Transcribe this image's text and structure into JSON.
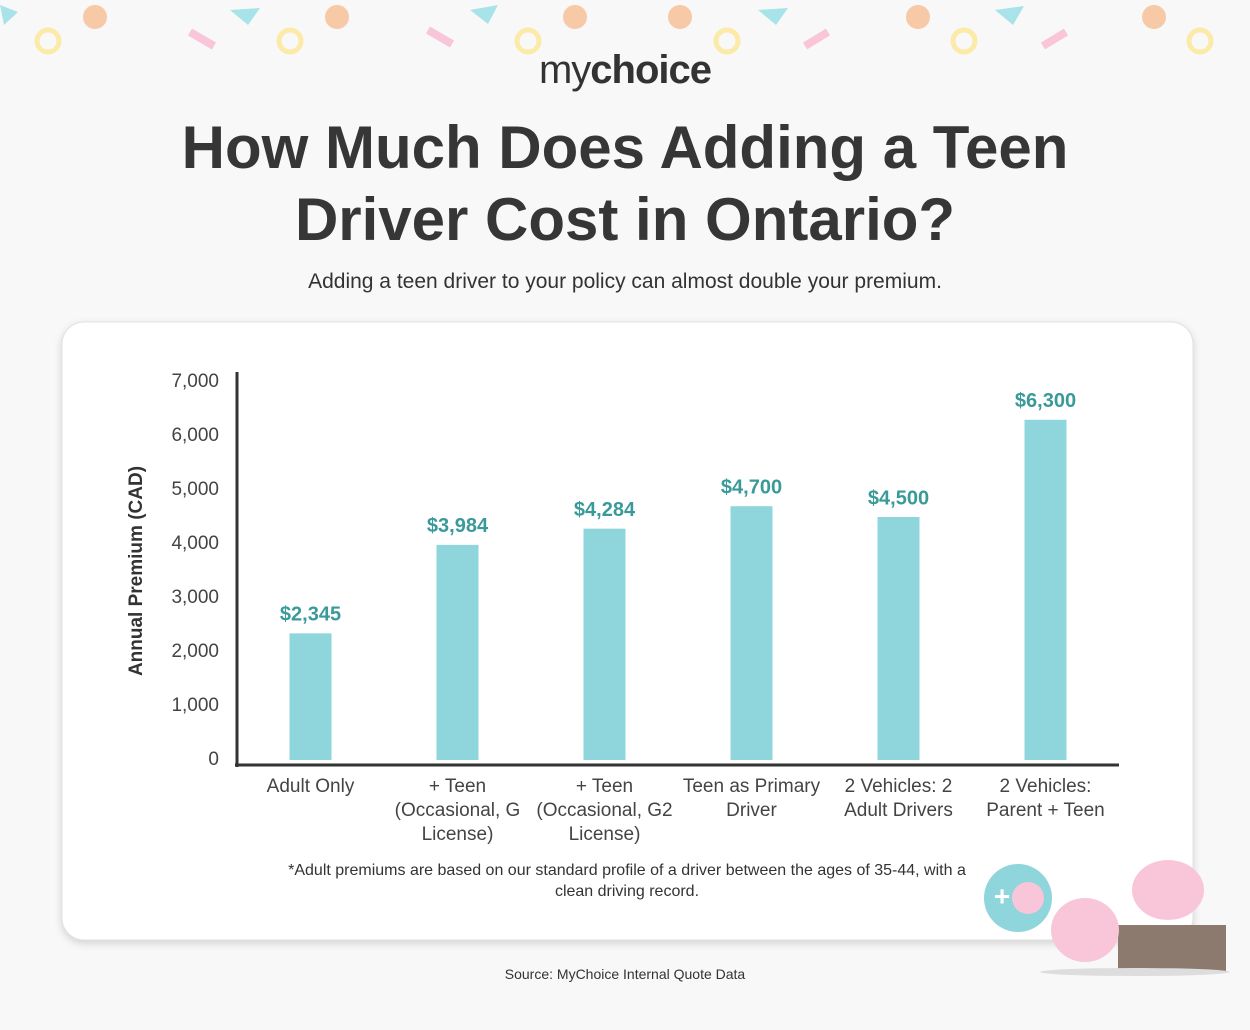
{
  "logo": [
    "my",
    "choice"
  ],
  "chart_data": {
    "type": "bar",
    "title": "How Much Does Adding a Teen Driver Cost in Ontario?",
    "subtitle": "Adding a teen driver to your policy can almost double your premium.",
    "y_label": "Annual Premium (CAD)",
    "categories": [
      "Adult Only",
      "+ Teen (Occasional, G License)",
      "+ Teen (Occasional, G2 License)",
      "Teen as Primary Driver",
      "2 Vehicles: 2 Adult Drivers",
      "2 Vehicles: Parent + Teen"
    ],
    "values": [
      2345,
      3984,
      4284,
      4700,
      4500,
      6300
    ],
    "value_labels": [
      "$2,345",
      "$3,984",
      "$4,284",
      "$4,700",
      "$4,500",
      "$6,300"
    ],
    "color": "#8fd5dc",
    "ylim": [
      0,
      7000
    ],
    "yticks": [
      0,
      {
        "value": 1000,
        "label": "1,000"
      },
      {
        "value": 2000,
        "label": "2,000"
      },
      {
        "value": 3000,
        "label": "3,000"
      },
      {
        "value": 4000,
        "label": "4,000"
      },
      {
        "value": 5000,
        "label": "5,000"
      },
      {
        "value": 6000,
        "label": "6,000"
      },
      {
        "value": 7000,
        "label": "7,000"
      }
    ],
    "grid": false,
    "footnote": "*Adult premiums are based on our standard profile of a driver between the ages of 35-44, with a clean driving record.",
    "source": "Source: MyChoice Internal Quote Data"
  }
}
